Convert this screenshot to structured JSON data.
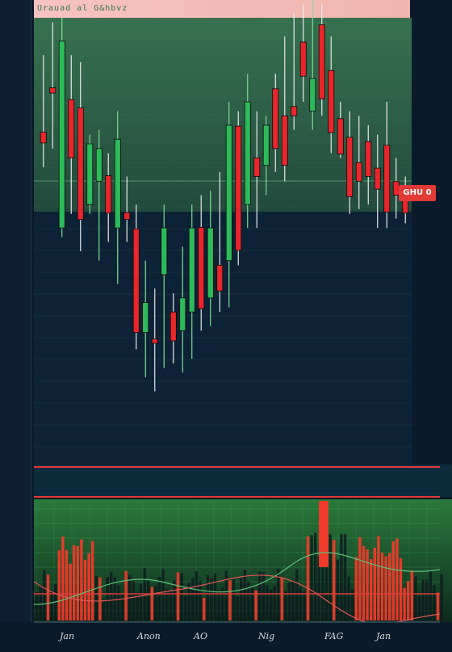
{
  "top_bar": {
    "title": "Urauad  al G&hbvz"
  },
  "price_tag": "GHU 0",
  "x_labels": [
    "Jan",
    "Anon",
    "AO",
    "Nig",
    "FAG",
    "Jan"
  ],
  "colors": {
    "up": "#2dbb5a",
    "down": "#e8262c",
    "bg": "#0b1a2a",
    "band": "#2f6a46"
  },
  "chart_data": {
    "type": "candlestick",
    "title": "",
    "xlabel": "",
    "ylabel": "",
    "ylim": [
      0,
      100
    ],
    "candles": [
      {
        "o": 75.5,
        "c": 73.2,
        "h": 92,
        "l": 68
      },
      {
        "o": 85,
        "c": 83.9,
        "h": 99,
        "l": 72
      },
      {
        "o": 55,
        "c": 95,
        "h": 100,
        "l": 53
      },
      {
        "o": 82.5,
        "c": 70,
        "h": 92,
        "l": 58
      },
      {
        "o": 80.7,
        "c": 56.8,
        "h": 90.5,
        "l": 50
      },
      {
        "o": 60,
        "c": 73,
        "h": 75,
        "l": 58
      },
      {
        "o": 65,
        "c": 72,
        "h": 76,
        "l": 48
      },
      {
        "o": 66.2,
        "c": 58.2,
        "h": 71,
        "l": 52
      },
      {
        "o": 55,
        "c": 74,
        "h": 80,
        "l": 43
      },
      {
        "o": 58.3,
        "c": 56.8,
        "h": 66,
        "l": 52
      },
      {
        "o": 54.8,
        "c": 32.6,
        "h": 60,
        "l": 29
      },
      {
        "o": 32.6,
        "c": 39,
        "h": 48,
        "l": 23
      },
      {
        "o": 31.2,
        "c": 30.3,
        "h": 42,
        "l": 20
      },
      {
        "o": 45,
        "c": 55,
        "h": 60,
        "l": 25
      },
      {
        "o": 37,
        "c": 30.8,
        "h": 41,
        "l": 26
      },
      {
        "o": 33,
        "c": 40,
        "h": 51,
        "l": 24
      },
      {
        "o": 37,
        "c": 55,
        "h": 60,
        "l": 27
      },
      {
        "o": 55.1,
        "c": 37.7,
        "h": 62,
        "l": 33
      },
      {
        "o": 40,
        "c": 55,
        "h": 63,
        "l": 34
      },
      {
        "o": 47,
        "c": 41.5,
        "h": 67,
        "l": 37
      },
      {
        "o": 48,
        "c": 77,
        "h": 82,
        "l": 38
      },
      {
        "o": 76.8,
        "c": 50.2,
        "h": 80,
        "l": 47
      },
      {
        "o": 60,
        "c": 82,
        "h": 88,
        "l": 55
      },
      {
        "o": 70,
        "c": 66,
        "h": 80,
        "l": 55
      },
      {
        "o": 68.4,
        "c": 77,
        "h": 79,
        "l": 62
      },
      {
        "o": 84.8,
        "c": 72,
        "h": 88,
        "l": 67
      },
      {
        "o": 79,
        "c": 68.4,
        "h": 96,
        "l": 65
      },
      {
        "o": 81,
        "c": 79,
        "h": 101,
        "l": 76
      },
      {
        "o": 94.8,
        "c": 87.5,
        "h": 103,
        "l": 82
      },
      {
        "o": 80,
        "c": 87,
        "h": 105,
        "l": 76
      },
      {
        "o": 98.5,
        "c": 82.6,
        "h": 103,
        "l": 79
      },
      {
        "o": 88.7,
        "c": 75.4,
        "h": 96,
        "l": 71
      },
      {
        "o": 78.4,
        "c": 70.8,
        "h": 82,
        "l": 70
      },
      {
        "o": 74.4,
        "c": 61.7,
        "h": 80,
        "l": 58
      },
      {
        "o": 69,
        "c": 65,
        "h": 79,
        "l": 59
      },
      {
        "o": 73.5,
        "c": 66,
        "h": 77,
        "l": 60
      },
      {
        "o": 67.8,
        "c": 63.3,
        "h": 75,
        "l": 55
      },
      {
        "o": 72.7,
        "c": 58.4,
        "h": 82,
        "l": 55
      },
      {
        "o": 65,
        "c": 62,
        "h": 70,
        "l": 57
      },
      {
        "o": 61.6,
        "c": 58.2,
        "h": 66,
        "l": 56
      }
    ]
  }
}
